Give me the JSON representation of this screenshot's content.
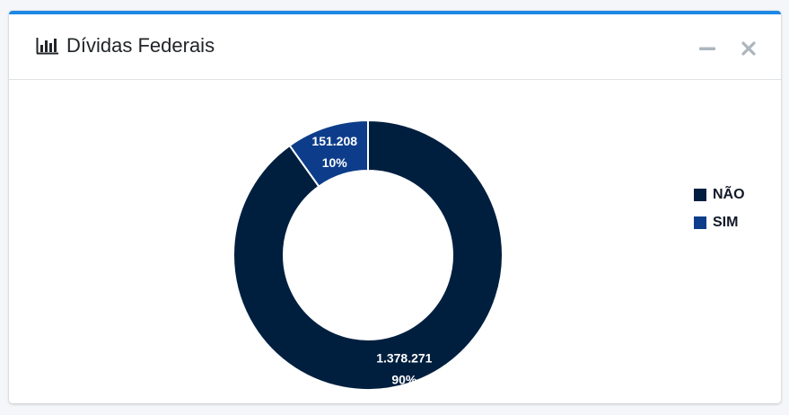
{
  "card": {
    "title": "Dívidas Federais",
    "icon": "bar-chart-icon",
    "accent_color": "#1e88e5"
  },
  "tools": {
    "minimize_icon": "minus-icon",
    "close_icon": "close-icon"
  },
  "chart_data": {
    "type": "pie",
    "variant": "doughnut",
    "categories": [
      "NÃO",
      "SIM"
    ],
    "values": [
      1378271,
      151208
    ],
    "value_labels": [
      "1.378.271",
      "151.208"
    ],
    "percent_labels": [
      "90%",
      "10%"
    ],
    "colors": [
      "#001f3f",
      "#0d3d8a"
    ],
    "legend_position": "top-right"
  }
}
